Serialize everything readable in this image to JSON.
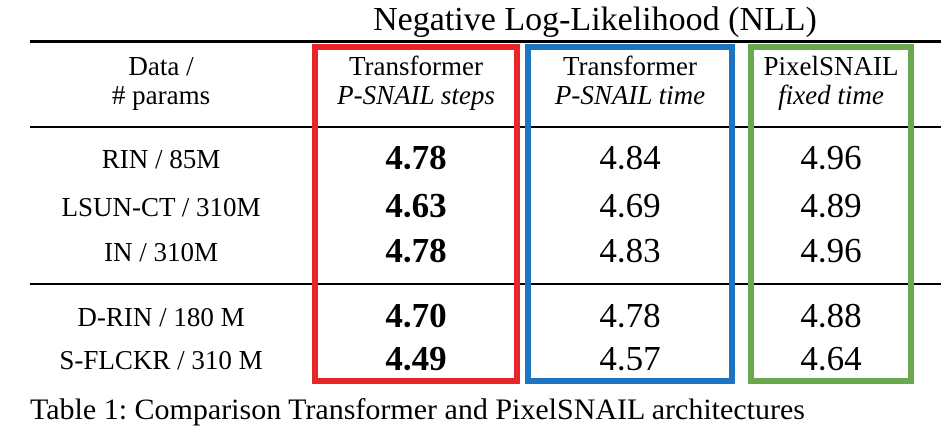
{
  "title": "Negative Log-Likelihood (NLL)",
  "header": {
    "col0": [
      "Data /",
      "# params"
    ],
    "col1": [
      "Transformer",
      "P-SNAIL steps"
    ],
    "col2": [
      "Transformer",
      "P-SNAIL time"
    ],
    "col3": [
      "PixelSNAIL",
      "fixed time"
    ]
  },
  "rows": [
    {
      "label": "RIN / 85M",
      "steps": "4.78",
      "time": "4.84",
      "fixed": "4.96"
    },
    {
      "label": "LSUN-CT / 310M",
      "steps": "4.63",
      "time": "4.69",
      "fixed": "4.89"
    },
    {
      "label": "IN / 310M",
      "steps": "4.78",
      "time": "4.83",
      "fixed": "4.96"
    },
    {
      "label": "D-RIN / 180 M",
      "steps": "4.70",
      "time": "4.78",
      "fixed": "4.88"
    },
    {
      "label": "S-FLCKR / 310 M",
      "steps": "4.49",
      "time": "4.57",
      "fixed": "4.64"
    }
  ],
  "highlight_colors": {
    "steps": "#e8262a",
    "time": "#1c74c2",
    "fixed": "#6aa84f"
  },
  "caption": "Table 1: Comparison Transformer and PixelSNAIL architectures"
}
